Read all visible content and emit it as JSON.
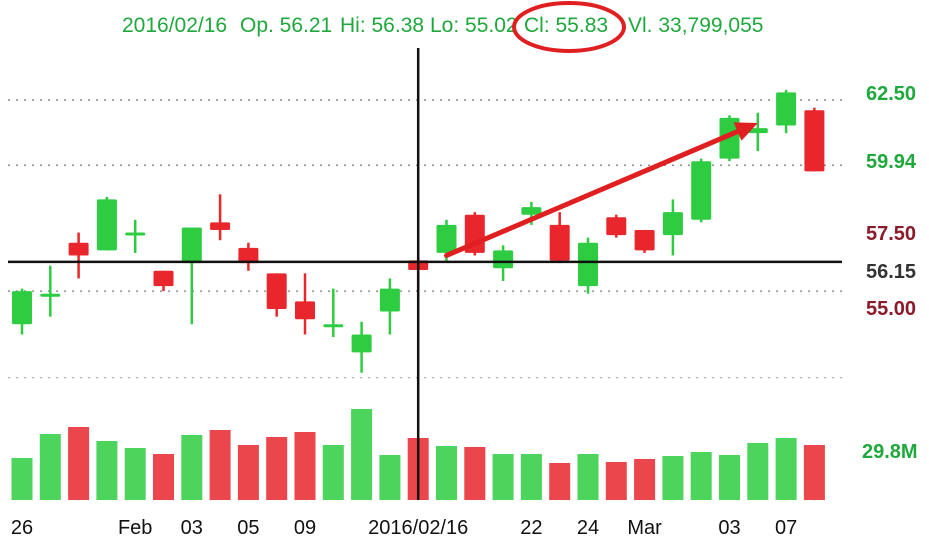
{
  "header": {
    "date": "2016/02/16",
    "open": "Op. 56.21",
    "high": "Hi: 56.38",
    "low": "Lo: 55.02",
    "close": "Cl: 55.83",
    "volume": "Vl. 33,799,055"
  },
  "colors": {
    "up": "#2ecc40",
    "down": "#e8262b",
    "header_text": "#1fa83c",
    "annotation": "#e02020",
    "label_green": "#1fa83c",
    "label_red": "#8b1a2a",
    "label_dark": "#333333"
  },
  "price_labels": [
    {
      "text": "62.50",
      "color": "green"
    },
    {
      "text": "59.94",
      "color": "green"
    },
    {
      "text": "57.50",
      "color": "red"
    },
    {
      "text": "56.15",
      "color": "dark"
    },
    {
      "text": "55.00",
      "color": "red"
    }
  ],
  "volume_label": "29.8M",
  "annotations": {
    "close_highlight": "circle-around-close",
    "trend_arrow": "up-trend-arrow"
  },
  "chart_data": {
    "type": "candlestick",
    "ylim": [
      51.2,
      63.6
    ],
    "crosshair": {
      "date_index": 14,
      "price": 56.15
    },
    "gridlines": [
      62.5,
      59.94,
      55.0
    ],
    "x_tick_labels": [
      {
        "text": "26",
        "index": 0
      },
      {
        "text": "Feb",
        "index": 4
      },
      {
        "text": "03",
        "index": 6
      },
      {
        "text": "05",
        "index": 8
      },
      {
        "text": "09",
        "index": 10
      },
      {
        "text": "2016/02/16",
        "index": 14
      },
      {
        "text": "22",
        "index": 18
      },
      {
        "text": "24",
        "index": 20
      },
      {
        "text": "Mar",
        "index": 22
      },
      {
        "text": "03",
        "index": 25
      },
      {
        "text": "07",
        "index": 27
      }
    ],
    "trend_arrow_points": [
      [
        15,
        56.4
      ],
      [
        26,
        61.6
      ]
    ],
    "candles": [
      {
        "o": 53.7,
        "h": 55.1,
        "l": 53.3,
        "c": 55.0,
        "v": 0.42
      },
      {
        "o": 54.9,
        "h": 56.0,
        "l": 54.0,
        "c": 54.9,
        "v": 0.66
      },
      {
        "o": 56.9,
        "h": 57.3,
        "l": 55.5,
        "c": 56.4,
        "v": 0.73
      },
      {
        "o": 56.6,
        "h": 58.7,
        "l": 56.6,
        "c": 58.6,
        "v": 0.59
      },
      {
        "o": 57.3,
        "h": 57.8,
        "l": 56.5,
        "c": 57.3,
        "v": 0.52
      },
      {
        "o": 55.8,
        "h": 55.8,
        "l": 55.0,
        "c": 55.2,
        "v": 0.46
      },
      {
        "o": 56.1,
        "h": 57.5,
        "l": 53.7,
        "c": 57.5,
        "v": 0.65
      },
      {
        "o": 57.7,
        "h": 58.8,
        "l": 57.0,
        "c": 57.4,
        "v": 0.7
      },
      {
        "o": 56.7,
        "h": 56.9,
        "l": 55.8,
        "c": 56.1,
        "v": 0.55
      },
      {
        "o": 55.7,
        "h": 55.7,
        "l": 54.0,
        "c": 54.3,
        "v": 0.63
      },
      {
        "o": 54.6,
        "h": 55.7,
        "l": 53.3,
        "c": 53.9,
        "v": 0.68
      },
      {
        "o": 53.7,
        "h": 55.1,
        "l": 53.2,
        "c": 53.7,
        "v": 0.55
      },
      {
        "o": 52.6,
        "h": 53.8,
        "l": 51.8,
        "c": 53.3,
        "v": 0.91
      },
      {
        "o": 54.2,
        "h": 55.5,
        "l": 53.3,
        "c": 55.1,
        "v": 0.45
      },
      {
        "o": 56.21,
        "h": 56.38,
        "l": 55.02,
        "c": 55.83,
        "v": 0.62
      },
      {
        "o": 56.5,
        "h": 57.8,
        "l": 56.2,
        "c": 57.6,
        "v": 0.54
      },
      {
        "o": 58.0,
        "h": 58.1,
        "l": 56.4,
        "c": 56.5,
        "v": 0.53
      },
      {
        "o": 55.9,
        "h": 56.8,
        "l": 55.4,
        "c": 56.6,
        "v": 0.46
      },
      {
        "o": 58.0,
        "h": 58.5,
        "l": 57.6,
        "c": 58.3,
        "v": 0.46
      },
      {
        "o": 57.6,
        "h": 58.1,
        "l": 56.1,
        "c": 56.2,
        "v": 0.37
      },
      {
        "o": 55.2,
        "h": 57.1,
        "l": 54.9,
        "c": 56.9,
        "v": 0.46
      },
      {
        "o": 57.9,
        "h": 58.0,
        "l": 57.1,
        "c": 57.2,
        "v": 0.38
      },
      {
        "o": 57.4,
        "h": 57.4,
        "l": 56.5,
        "c": 56.6,
        "v": 0.41
      },
      {
        "o": 57.2,
        "h": 58.6,
        "l": 56.4,
        "c": 58.1,
        "v": 0.44
      },
      {
        "o": 57.8,
        "h": 60.2,
        "l": 57.7,
        "c": 60.1,
        "v": 0.48
      },
      {
        "o": 60.2,
        "h": 61.9,
        "l": 60.1,
        "c": 61.8,
        "v": 0.45
      },
      {
        "o": 61.2,
        "h": 62.0,
        "l": 60.5,
        "c": 61.4,
        "v": 0.57
      },
      {
        "o": 61.5,
        "h": 62.9,
        "l": 61.2,
        "c": 62.8,
        "v": 0.62
      },
      {
        "o": 62.1,
        "h": 62.2,
        "l": 59.7,
        "c": 59.7,
        "v": 0.55
      }
    ]
  }
}
